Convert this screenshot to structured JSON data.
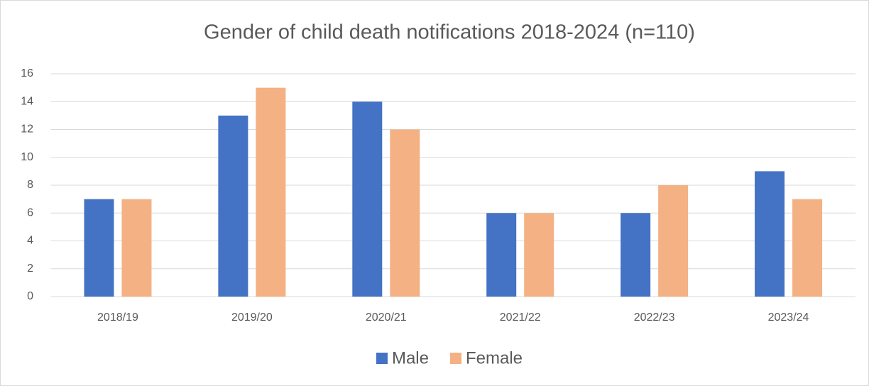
{
  "chart_data": {
    "type": "bar",
    "title": "Gender of child death notifications 2018-2024 (n=110)",
    "categories": [
      "2018/19",
      "2019/20",
      "2020/21",
      "2021/22",
      "2022/23",
      "2023/24"
    ],
    "series": [
      {
        "name": "Male",
        "color": "#4472c4",
        "values": [
          7,
          13,
          14,
          6,
          6,
          9
        ]
      },
      {
        "name": "Female",
        "color": "#f4b183",
        "values": [
          7,
          15,
          12,
          6,
          8,
          7
        ]
      }
    ],
    "ylim": [
      0,
      16
    ],
    "yticks": [
      0,
      2,
      4,
      6,
      8,
      10,
      12,
      14,
      16
    ],
    "grid": true,
    "legend": "bottom"
  }
}
